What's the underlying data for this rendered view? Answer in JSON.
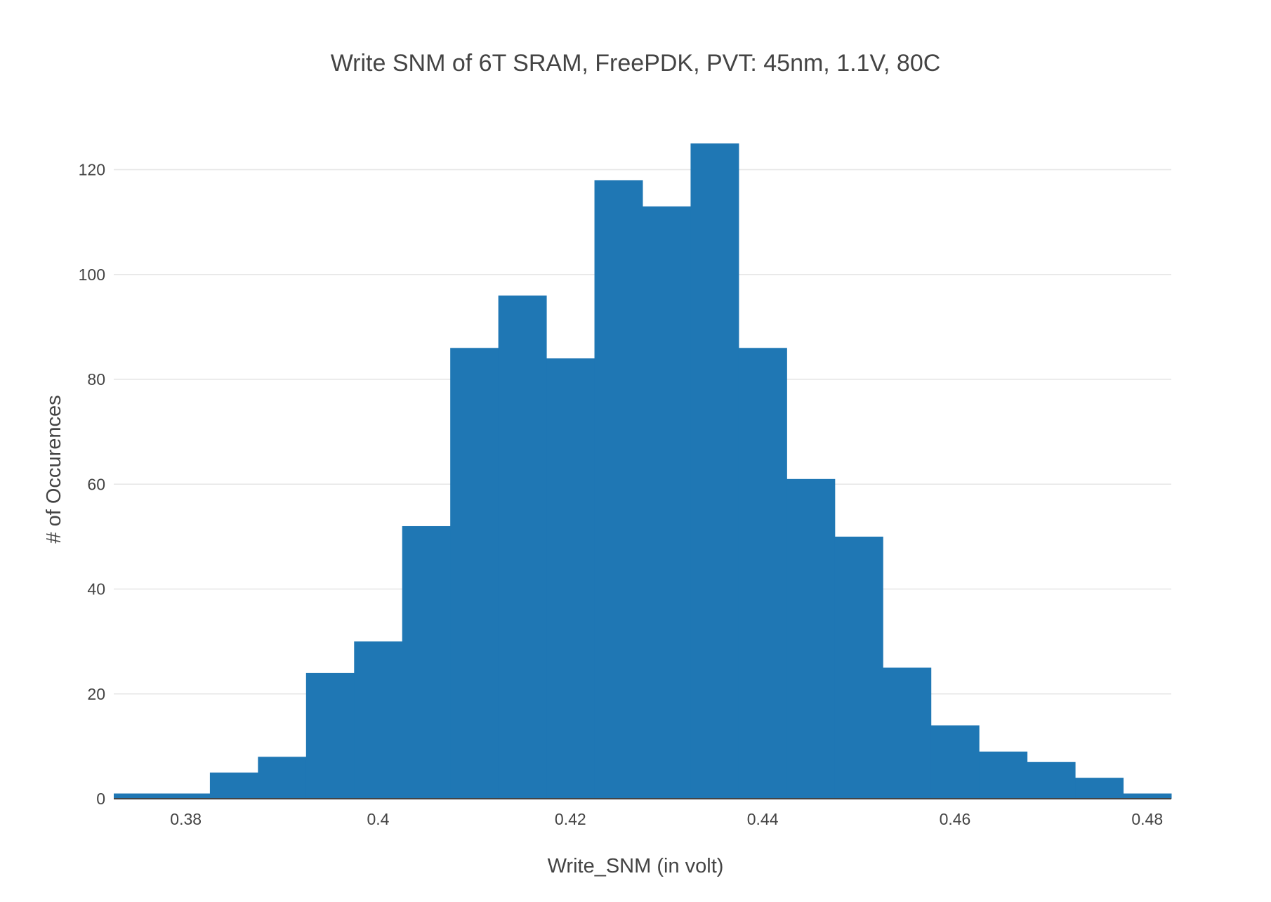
{
  "chart_data": {
    "type": "bar",
    "subtype": "histogram",
    "title": "Write SNM of 6T SRAM, FreePDK, PVT: 45nm, 1.1V, 80C",
    "xlabel": "Write_SNM (in volt)",
    "ylabel": "# of Occurences",
    "bin_width": 0.005,
    "bin_starts": [
      0.3725,
      0.3775,
      0.3825,
      0.3875,
      0.3925,
      0.3975,
      0.4025,
      0.4075,
      0.4125,
      0.4175,
      0.4225,
      0.4275,
      0.4325,
      0.4375,
      0.4425,
      0.4475,
      0.4525,
      0.4575,
      0.4625,
      0.4675,
      0.4725,
      0.4775
    ],
    "values": [
      1,
      1,
      5,
      8,
      24,
      30,
      52,
      86,
      96,
      84,
      118,
      113,
      125,
      86,
      61,
      50,
      25,
      14,
      9,
      7,
      4,
      1
    ],
    "xlim": [
      0.3725,
      0.4825
    ],
    "ylim": [
      0,
      131.6
    ],
    "xticks": [
      0.38,
      0.4,
      0.42,
      0.44,
      0.46,
      0.48
    ],
    "xtick_labels": [
      "0.38",
      "0.4",
      "0.42",
      "0.44",
      "0.46",
      "0.48"
    ],
    "yticks": [
      0,
      20,
      40,
      60,
      80,
      100,
      120
    ],
    "ytick_labels": [
      "0",
      "20",
      "40",
      "60",
      "80",
      "100",
      "120"
    ],
    "grid": true,
    "legend": false,
    "bar_color": "#1f77b4"
  }
}
